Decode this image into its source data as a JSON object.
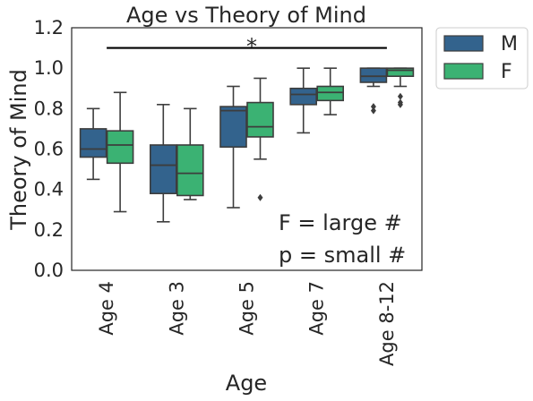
{
  "chart_data": {
    "type": "box",
    "title": "Age vs Theory of Mind",
    "xlabel": "Age",
    "ylabel": "Theory of Mind",
    "ylim": [
      0.0,
      1.2
    ],
    "yticks": [
      "0.0",
      "0.2",
      "0.4",
      "0.6",
      "0.8",
      "1.0",
      "1.2"
    ],
    "categories": [
      "Age 4",
      "Age 3",
      "Age 5",
      "Age 7",
      "Age 8-12"
    ],
    "grid": false,
    "legend_position": "outside-top-right",
    "series": [
      {
        "name": "M",
        "color": "#33638d",
        "boxes": [
          {
            "whislo": 0.45,
            "q1": 0.56,
            "med": 0.6,
            "q3": 0.7,
            "whishi": 0.8,
            "fliers": []
          },
          {
            "whislo": 0.24,
            "q1": 0.38,
            "med": 0.52,
            "q3": 0.62,
            "whishi": 0.82,
            "fliers": []
          },
          {
            "whislo": 0.31,
            "q1": 0.61,
            "med": 0.79,
            "q3": 0.81,
            "whishi": 0.91,
            "fliers": []
          },
          {
            "whislo": 0.68,
            "q1": 0.82,
            "med": 0.87,
            "q3": 0.9,
            "whishi": 1.0,
            "fliers": []
          },
          {
            "whislo": 0.91,
            "q1": 0.93,
            "med": 0.96,
            "q3": 1.0,
            "whishi": 1.0,
            "fliers": [
              0.79,
              0.81
            ]
          }
        ]
      },
      {
        "name": "F",
        "color": "#3bb273",
        "boxes": [
          {
            "whislo": 0.29,
            "q1": 0.53,
            "med": 0.62,
            "q3": 0.69,
            "whishi": 0.88,
            "fliers": []
          },
          {
            "whislo": 0.35,
            "q1": 0.37,
            "med": 0.48,
            "q3": 0.62,
            "whishi": 0.8,
            "fliers": []
          },
          {
            "whislo": 0.55,
            "q1": 0.66,
            "med": 0.71,
            "q3": 0.83,
            "whishi": 0.95,
            "fliers": [
              0.36
            ]
          },
          {
            "whislo": 0.77,
            "q1": 0.84,
            "med": 0.88,
            "q3": 0.91,
            "whishi": 1.0,
            "fliers": []
          },
          {
            "whislo": 0.91,
            "q1": 0.96,
            "med": 0.99,
            "q3": 1.0,
            "whishi": 1.0,
            "fliers": [
              0.82,
              0.83,
              0.86
            ]
          }
        ]
      }
    ],
    "annotations": {
      "significance_marker": "*",
      "significance_bar_y": 1.1,
      "significance_from": "Age 4",
      "significance_to": "Age 8-12",
      "stat_line_1": "F = large #",
      "stat_line_2": "p = small #"
    }
  }
}
